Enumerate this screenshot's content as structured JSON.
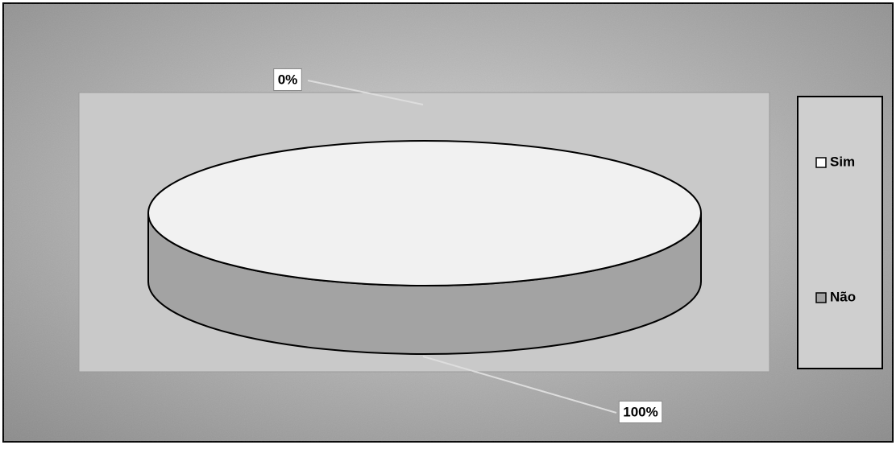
{
  "chart_data": {
    "type": "pie",
    "categories": [
      "Sim",
      "Não"
    ],
    "values": [
      0,
      100
    ],
    "value_labels": [
      "0%",
      "100%"
    ],
    "colors": [
      "#ffffff",
      "#a3a3a3"
    ],
    "legend": "right"
  }
}
